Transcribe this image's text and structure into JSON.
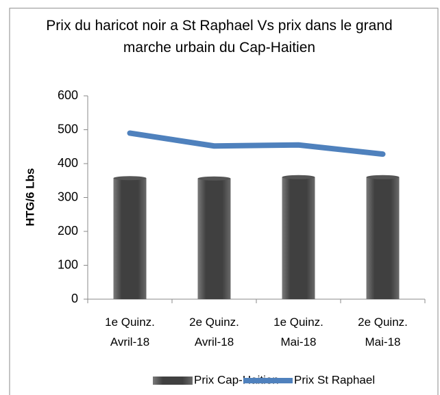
{
  "chart_data": {
    "type": "bar",
    "title": "Prix du haricot noir a St Raphael Vs prix dans le grand marche urbain du Cap-Haitien",
    "ylabel": "HTG/6 Lbs",
    "categories": [
      "1e Quinz.\nAvril-18",
      "2e Quinz.\nAvril-18",
      "1e Quinz.\nMai-18",
      "2e Quinz.\nMai-18"
    ],
    "series": [
      {
        "name": "Prix Cap-Haitien",
        "type": "bar",
        "color": "#404040",
        "values": [
          357,
          356,
          360,
          360
        ]
      },
      {
        "name": "Prix St Raphael",
        "type": "line",
        "color": "#4f81bd",
        "values": [
          490,
          452,
          455,
          428
        ]
      }
    ],
    "ylim": [
      0,
      600
    ],
    "yticks": [
      0,
      100,
      200,
      300,
      400,
      500,
      600
    ],
    "grid": false,
    "legend": "bottom"
  }
}
